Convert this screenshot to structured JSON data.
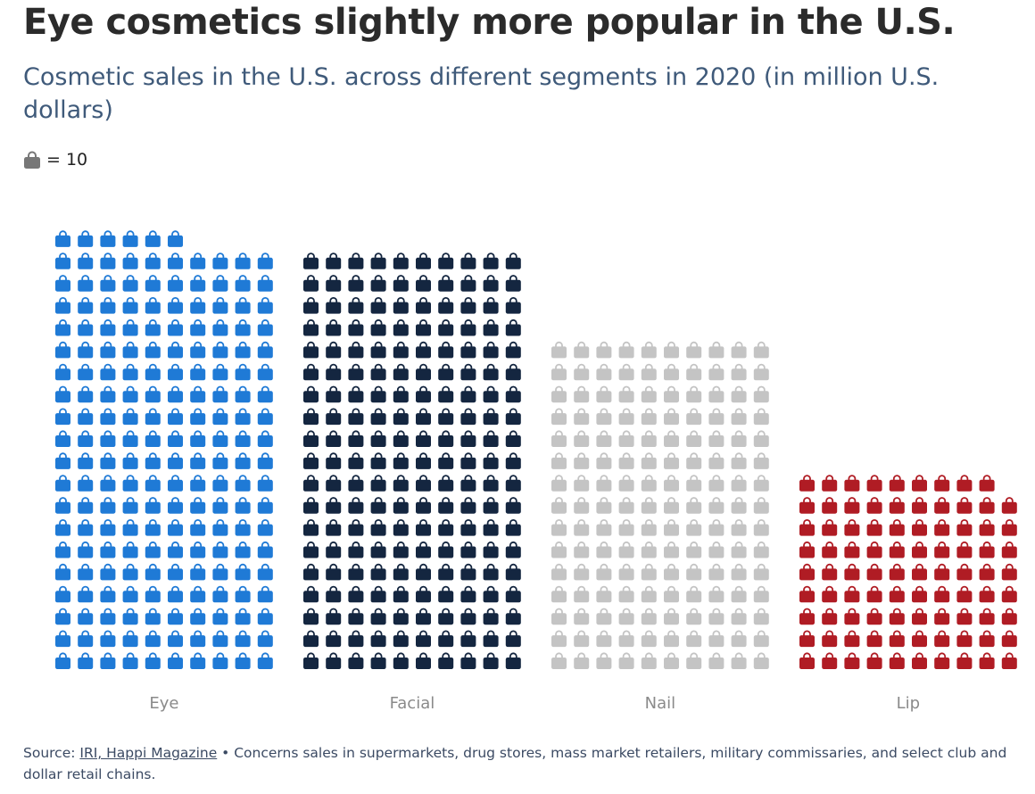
{
  "header": {
    "title": "Eye cosmetics slightly more popular in the U.S.",
    "subtitle": "Cosmetic sales in the U.S. across different segments in 2020 (in million U.S. dollars)"
  },
  "legend": {
    "icon": "shopping-bag-icon",
    "label": "= 10"
  },
  "chart_data": {
    "type": "bar",
    "encoding": "pictogram",
    "unit_value": 10,
    "icons_per_row": 10,
    "categories": [
      "Eye",
      "Facial",
      "Nail",
      "Lip"
    ],
    "values": [
      1960,
      1900,
      1500,
      890
    ],
    "colors": [
      "#1f7ad6",
      "#142640",
      "#c4c4c4",
      "#b01c24"
    ],
    "axis_label_color": "#8a8a8a",
    "grid": false
  },
  "footer": {
    "source_prefix": "Source: ",
    "source_links": "IRI, Happi Magazine",
    "note": " • Concerns sales in supermarkets, drug stores, mass market retailers, military commissaries, and select club and dollar retail chains."
  }
}
